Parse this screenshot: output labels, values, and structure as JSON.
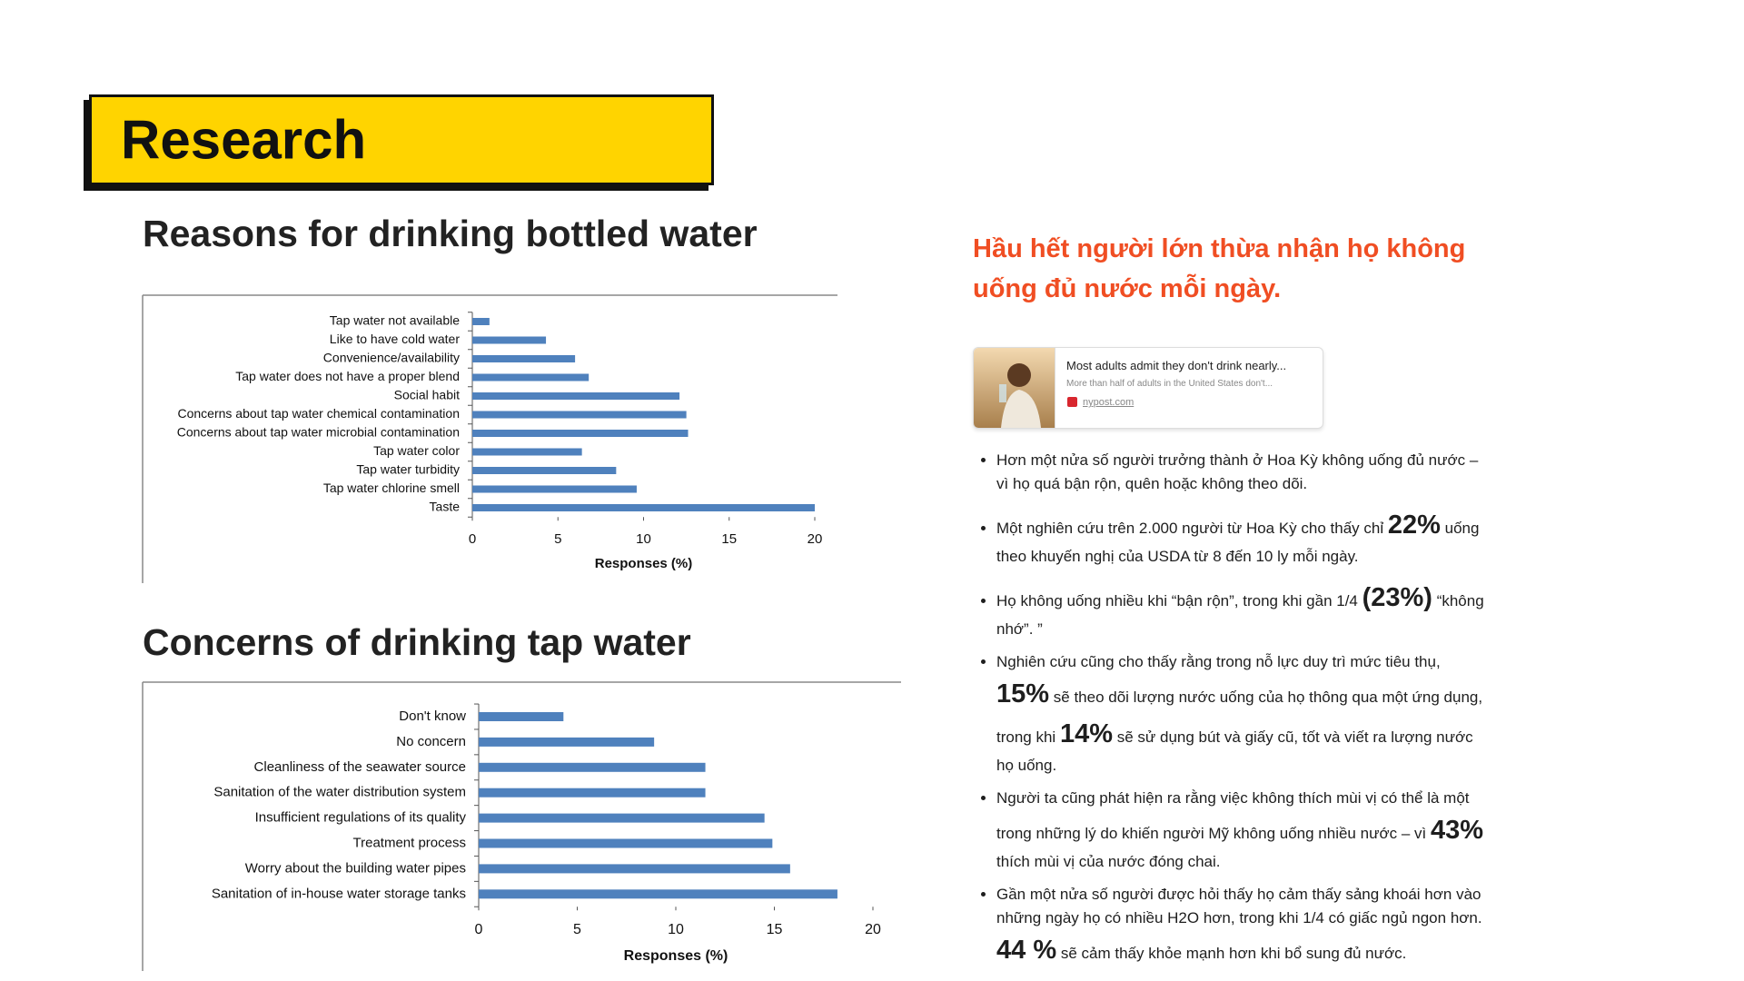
{
  "header": {
    "title": "Research"
  },
  "chart_data": [
    {
      "type": "bar",
      "title": "Reasons for drinking bottled water",
      "x_label": "Responses (%)",
      "color": "#4f81bd",
      "categories": [
        "Tap water not available",
        "Like to have cold water",
        "Convenience/availability",
        "Tap water does not have a proper blend",
        "Social habit",
        "Concerns about tap water chemical contamination",
        "Concerns about tap water microbial contamination",
        "Tap water color",
        "Tap water turbidity",
        "Tap water chlorine smell",
        "Taste"
      ],
      "values": [
        1.0,
        4.3,
        6.0,
        6.8,
        12.1,
        12.5,
        12.6,
        6.4,
        8.4,
        9.6,
        20.0
      ],
      "xlim": [
        0,
        20
      ],
      "xticks": [
        0,
        5,
        10,
        15,
        20
      ]
    },
    {
      "type": "bar",
      "title": "Concerns of drinking tap water",
      "x_label": "Responses (%)",
      "color": "#4f81bd",
      "categories": [
        "Don't know",
        "No concern",
        "Cleanliness of the seawater source",
        "Sanitation of the water distribution system",
        "Insufficient regulations of its quality",
        "Treatment process",
        "Worry about the building water pipes",
        "Sanitation of in-house water storage tanks"
      ],
      "values": [
        4.3,
        8.9,
        11.5,
        11.5,
        14.5,
        14.9,
        15.8,
        18.2
      ],
      "xlim": [
        0,
        20
      ],
      "xticks": [
        0,
        5,
        10,
        15,
        20
      ]
    }
  ],
  "article": {
    "heading": "Hầu hết người lớn thừa nhận họ không uống đủ nước mỗi ngày.",
    "card": {
      "title": "Most adults admit they don't drink nearly...",
      "description": "More than half of adults in the United States don't...",
      "source": "nypost.com"
    },
    "bullets": [
      [
        "Hơn một nửa số người trưởng thành ở Hoa Kỳ không uống đủ nước – vì họ quá bận rộn, quên hoặc không theo dõi."
      ],
      [
        "Một nghiên cứu trên 2.000 người từ Hoa Kỳ cho thấy chỉ ",
        "22%",
        " uống theo khuyến nghị của USDA từ 8 đến 10 ly mỗi ngày."
      ],
      [
        "Họ không uống nhiều khi “bận rộn”, trong khi gần 1/4 ",
        "(23%)",
        " “không nhớ”. ”"
      ],
      [
        "Nghiên cứu cũng cho thấy rằng trong nỗ lực duy trì mức tiêu thụ, ",
        "15%",
        " sẽ theo dõi lượng nước uống của họ thông qua một ứng dụng, trong khi ",
        "14%",
        " sẽ sử dụng bút và giấy cũ, tốt và viết ra lượng nước họ uống."
      ],
      [
        "Người ta cũng phát hiện ra rằng việc không thích mùi vị có thể là một trong những lý do khiến người Mỹ không uống nhiều nước – vì ",
        "43%",
        " thích mùi vị của nước đóng chai."
      ],
      [
        "Gần một nửa số người được hỏi thấy họ cảm thấy sảng khoái hơn vào những ngày họ có nhiều H2O hơn, trong khi 1/4 có giấc ngủ ngon hơn. ",
        "44 %",
        " sẽ cảm thấy khỏe mạnh hơn khi bổ sung đủ nước."
      ]
    ]
  }
}
